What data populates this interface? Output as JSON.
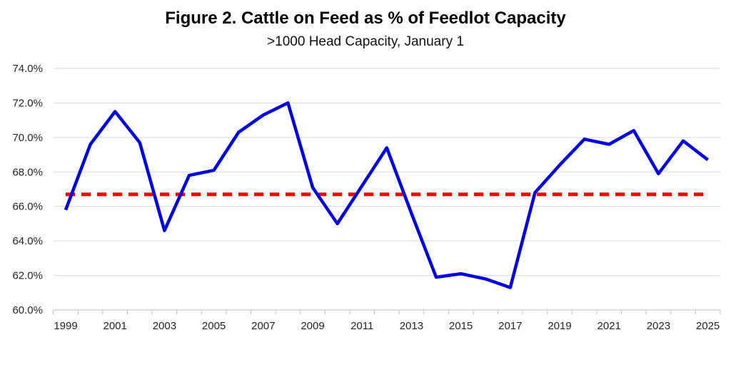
{
  "chart_data": {
    "type": "line",
    "title": "Figure 2. Cattle on Feed as % of Feedlot Capacity",
    "subtitle": ">1000 Head Capacity, January 1",
    "xlabel": "",
    "ylabel": "",
    "x": [
      1999,
      2000,
      2001,
      2002,
      2003,
      2004,
      2005,
      2006,
      2007,
      2008,
      2009,
      2010,
      2011,
      2012,
      2013,
      2014,
      2015,
      2016,
      2017,
      2018,
      2019,
      2020,
      2021,
      2022,
      2023,
      2024,
      2025
    ],
    "series": [
      {
        "name": "Cattle on Feed as % of Feedlot Capacity",
        "color": "#0000EE",
        "values": [
          65.8,
          69.6,
          71.5,
          69.7,
          64.6,
          67.8,
          68.1,
          70.3,
          71.3,
          72.0,
          67.1,
          65.0,
          67.2,
          69.4,
          65.6,
          61.9,
          62.1,
          61.8,
          61.3,
          66.8,
          68.4,
          69.9,
          69.6,
          70.4,
          67.9,
          69.8,
          68.7
        ]
      }
    ],
    "average_line": {
      "value": 66.7,
      "color": "#FF0000",
      "style": "dashed"
    },
    "ylim": [
      60,
      74
    ],
    "y_tick_step": 2,
    "y_tick_labels": [
      "60.0%",
      "62.0%",
      "64.0%",
      "66.0%",
      "68.0%",
      "70.0%",
      "72.0%",
      "74.0%"
    ],
    "x_tick_labels": [
      "1999",
      "2001",
      "2003",
      "2005",
      "2007",
      "2009",
      "2011",
      "2013",
      "2015",
      "2017",
      "2019",
      "2021",
      "2023",
      "2025"
    ],
    "grid": "horizontal",
    "legend": "none",
    "colors": {
      "gridline": "#D9D9D9",
      "axis": "#BFBFBF",
      "tick_label": "#262626",
      "title": "#000000"
    }
  }
}
